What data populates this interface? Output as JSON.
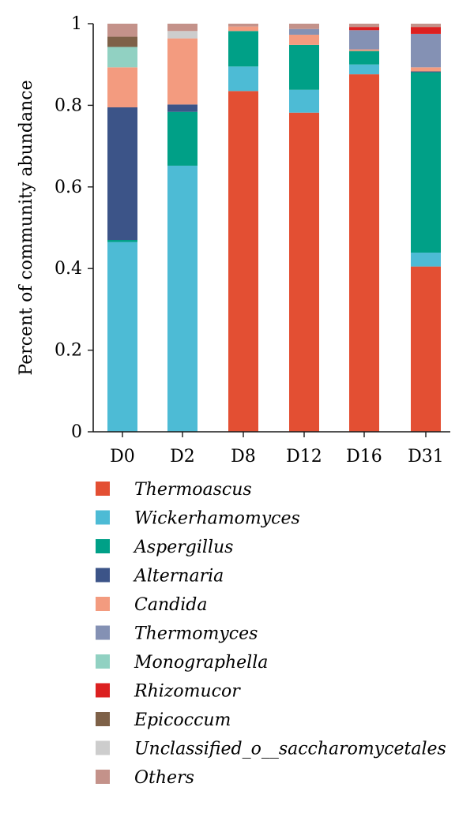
{
  "chart_data": {
    "type": "bar",
    "stacked": true,
    "ylabel": "Percent of community abundance",
    "xlabel": "",
    "ylim": [
      0,
      1
    ],
    "yticks": [
      "0",
      "0.2",
      "0.4",
      "0.6",
      "0.8",
      "1"
    ],
    "grid": false,
    "legend": "bottom",
    "categories": [
      "D0",
      "D2",
      "D8",
      "D12",
      "D16",
      "D31"
    ],
    "series": [
      {
        "name": "Thermoascus",
        "color": "#e34f33",
        "values": [
          0,
          0,
          0.835,
          0.782,
          0.876,
          0.405
        ]
      },
      {
        "name": "Wickerhamomyces",
        "color": "#4dbbd5",
        "values": [
          0.465,
          0.652,
          0.06,
          0.056,
          0.024,
          0.034
        ]
      },
      {
        "name": "Aspergillus",
        "color": "#00a087",
        "values": [
          0.005,
          0.132,
          0.087,
          0.11,
          0.033,
          0.442
        ]
      },
      {
        "name": "Alternaria",
        "color": "#3c5488",
        "values": [
          0.325,
          0.018,
          0,
          0,
          0,
          0.002
        ]
      },
      {
        "name": "Candida",
        "color": "#f39b7f",
        "values": [
          0.098,
          0.162,
          0.011,
          0.025,
          0.004,
          0.01
        ]
      },
      {
        "name": "Thermomyces",
        "color": "#8491b4",
        "values": [
          0,
          0,
          0,
          0.014,
          0.047,
          0.082
        ]
      },
      {
        "name": "Monographella",
        "color": "#91d1c2",
        "values": [
          0.05,
          0,
          0,
          0,
          0,
          0
        ]
      },
      {
        "name": "Rhizomucor",
        "color": "#dc2020",
        "values": [
          0,
          0,
          0,
          0,
          0.008,
          0.017
        ]
      },
      {
        "name": "Epicoccum",
        "color": "#7e6148",
        "values": [
          0.025,
          0,
          0,
          0,
          0,
          0
        ]
      },
      {
        "name": "Unclassified_o__saccharomycetales",
        "color": "#cdcdcd",
        "values": [
          0,
          0.018,
          0,
          0,
          0,
          0
        ]
      },
      {
        "name": "Others",
        "color": "#c4928a",
        "values": [
          0.032,
          0.018,
          0.007,
          0.013,
          0.008,
          0.008
        ]
      }
    ]
  }
}
